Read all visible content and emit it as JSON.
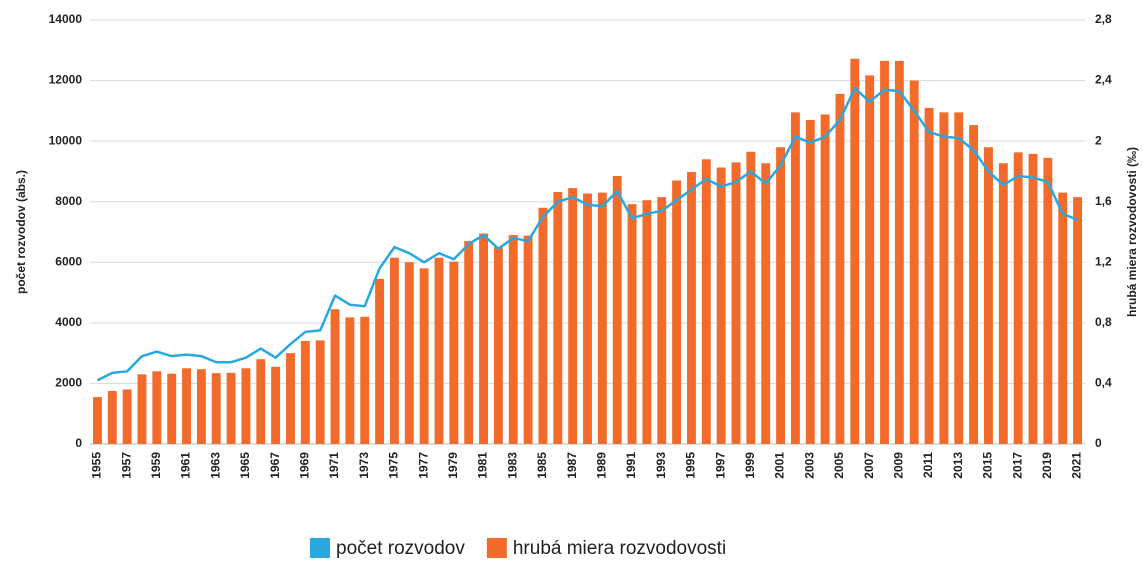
{
  "chart_data": {
    "type": "bar_line",
    "ylabel": "počet rozvodov (abs.)",
    "y2label": "hrubá miera rozvodovosti (‰)",
    "categories": [
      "1955",
      null,
      "1957",
      null,
      "1959",
      null,
      "1961",
      null,
      "1963",
      null,
      "1965",
      null,
      "1967",
      null,
      "1969",
      null,
      "1971",
      null,
      "1973",
      null,
      "1975",
      null,
      "1977",
      null,
      "1979",
      null,
      "1981",
      null,
      "1983",
      null,
      "1985",
      null,
      "1987",
      null,
      "1989",
      null,
      "1991",
      null,
      "1993",
      null,
      "1995",
      null,
      "1997",
      null,
      "1999",
      null,
      "2001",
      null,
      "2003",
      null,
      "2005",
      null,
      "2007",
      null,
      "2009",
      null,
      "2011",
      null,
      "2013",
      null,
      "2015",
      null,
      "2017",
      null,
      "2019",
      null,
      "2021"
    ],
    "series": [
      {
        "name": "počet rozvodov",
        "color": "#29a8e0",
        "type": "line",
        "axis": "y2",
        "values": [
          0.42,
          0.47,
          0.48,
          0.58,
          0.61,
          0.58,
          0.59,
          0.58,
          0.54,
          0.54,
          0.57,
          0.63,
          0.57,
          0.66,
          0.74,
          0.75,
          0.98,
          0.92,
          0.91,
          1.16,
          1.3,
          1.26,
          1.2,
          1.26,
          1.22,
          1.32,
          1.38,
          1.29,
          1.36,
          1.34,
          1.5,
          1.6,
          1.63,
          1.58,
          1.57,
          1.67,
          1.49,
          1.52,
          1.54,
          1.61,
          1.68,
          1.75,
          1.7,
          1.73,
          1.8,
          1.72,
          1.84,
          2.03,
          1.99,
          2.03,
          2.14,
          2.35,
          2.26,
          2.34,
          2.33,
          2.2,
          2.06,
          2.03,
          2.02,
          1.94,
          1.8,
          1.71,
          1.77,
          1.76,
          1.73,
          1.52,
          1.48
        ]
      },
      {
        "name": "hrubá miera rozvodovosti",
        "color": "#f26b2a",
        "type": "bar",
        "axis": "y",
        "values": [
          1550,
          1750,
          1800,
          2300,
          2400,
          2320,
          2500,
          2470,
          2340,
          2350,
          2500,
          2800,
          2550,
          3000,
          3400,
          3420,
          4450,
          4180,
          4200,
          5450,
          6150,
          6000,
          5800,
          6150,
          6020,
          6700,
          6950,
          6500,
          6900,
          6880,
          7800,
          8320,
          8450,
          8270,
          8300,
          8850,
          7920,
          8050,
          8150,
          8700,
          8980,
          9400,
          9130,
          9300,
          9650,
          9270,
          9800,
          10950,
          10700,
          10880,
          11560,
          12720,
          12170,
          12650,
          12650,
          12000,
          11100,
          10950,
          10950,
          10530,
          9800,
          9270,
          9630,
          9580,
          9450,
          8300,
          8150
        ]
      }
    ],
    "ylim": [
      0,
      14000
    ],
    "yticks": [
      0,
      2000,
      4000,
      6000,
      8000,
      10000,
      12000,
      14000
    ],
    "y2lim": [
      0,
      2.8
    ],
    "y2ticks": [
      0,
      {
        "value": 0.4,
        "label": "0,4"
      },
      {
        "value": 0.8,
        "label": "0,8"
      },
      {
        "value": 1.2,
        "label": "1,2"
      },
      {
        "value": 1.6,
        "label": "1,6"
      },
      2,
      {
        "value": 2.4,
        "label": "2,4"
      },
      {
        "value": 2.8,
        "label": "2,8"
      }
    ],
    "grid": true,
    "legend": "bottom"
  }
}
